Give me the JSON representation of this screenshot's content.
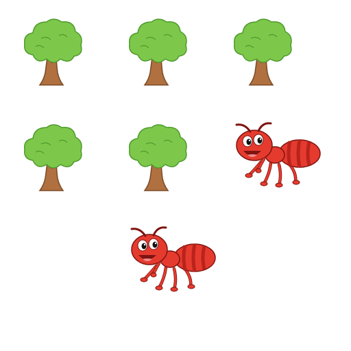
{
  "picture": {
    "items": [
      {
        "kind": "tree"
      },
      {
        "kind": "tree"
      },
      {
        "kind": "tree"
      },
      {
        "kind": "tree"
      },
      {
        "kind": "tree"
      },
      {
        "kind": "ant"
      },
      {
        "kind": "ant"
      }
    ],
    "colors": {
      "background": "#ffffff",
      "foliage": "#7dc84a",
      "foliage_outline": "#4e9a2c",
      "trunk": "#b0703f",
      "trunk_outline": "#7a4a26",
      "ant_body": "#e53b2e",
      "ant_dark": "#b9231c",
      "ant_outline": "#7d1410",
      "eye_white": "#ffffff",
      "pupil": "#111111",
      "tongue": "#f08a8a"
    }
  }
}
